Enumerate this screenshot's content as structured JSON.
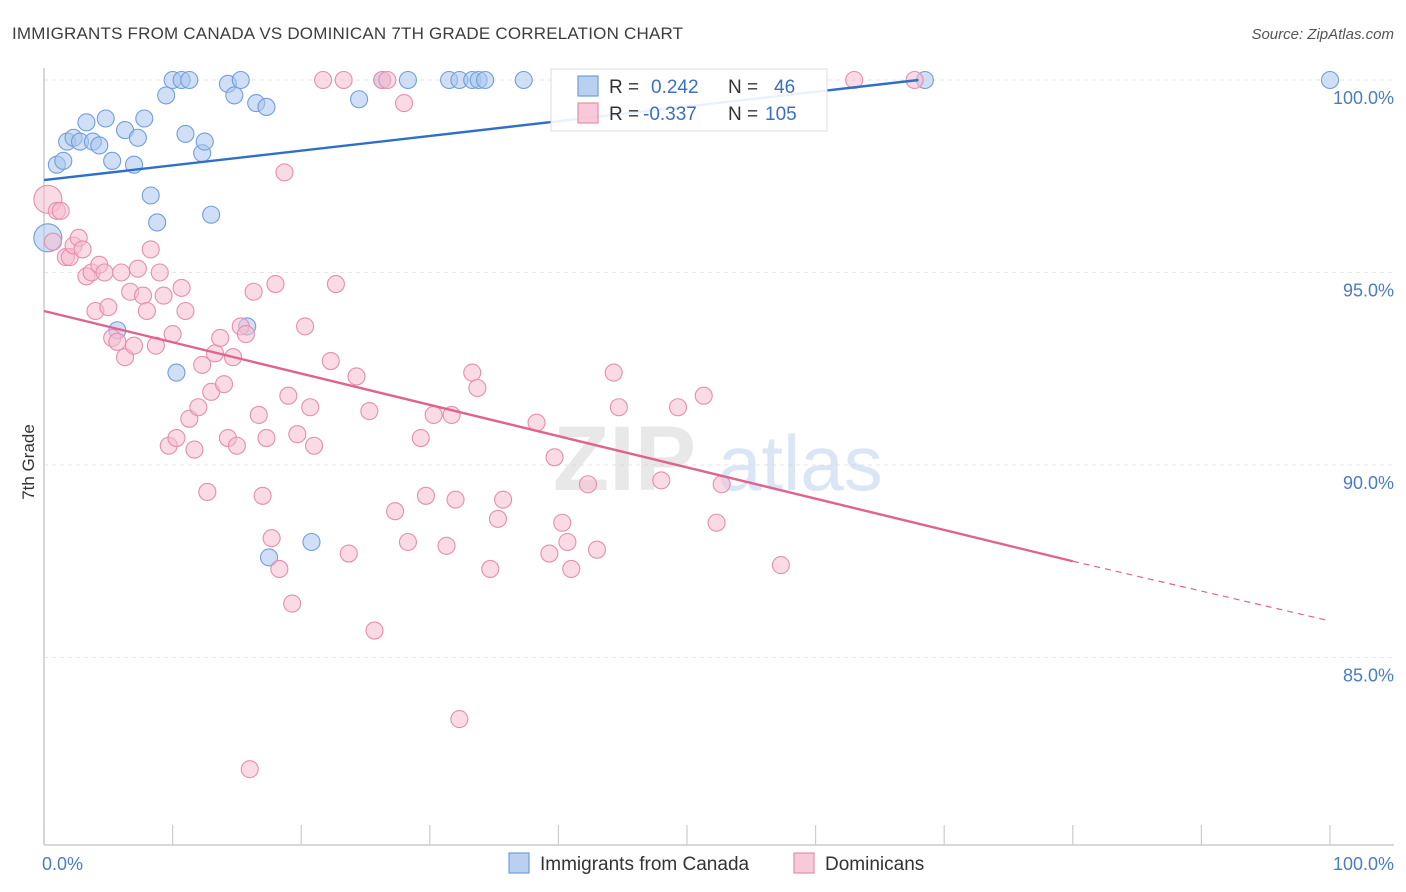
{
  "title": "IMMIGRANTS FROM CANADA VS DOMINICAN 7TH GRADE CORRELATION CHART",
  "source": "Source: ZipAtlas.com",
  "watermark": {
    "zip": "ZIP",
    "atlas": "atlas"
  },
  "chart_data": {
    "type": "scatter",
    "xlabel": "",
    "ylabel": "7th Grade",
    "xlim": [
      0,
      100
    ],
    "ylim": [
      80.5,
      100.8
    ],
    "x_tick_labels": [
      {
        "value": 0,
        "label": "0.0%"
      },
      {
        "value": 100,
        "label": "100.0%"
      }
    ],
    "y_ticks": [
      {
        "value": 100,
        "label": "100.0%"
      },
      {
        "value": 95,
        "label": "95.0%"
      },
      {
        "value": 90,
        "label": "90.0%"
      },
      {
        "value": 85,
        "label": "85.0%"
      }
    ],
    "grid": true,
    "legend_position": "top-center",
    "series": [
      {
        "name": "Immigrants from Canada",
        "color": "#a9c4ee",
        "stroke": "#6f9fdc",
        "line_color": "#2f6fc9",
        "R": "0.242",
        "N": "46",
        "trend": {
          "x0": 0,
          "y0": 97.4,
          "x1": 68,
          "y1": 100.0,
          "dash_to": null
        },
        "points": [
          [
            0.3,
            95.9
          ],
          [
            1.0,
            97.8
          ],
          [
            1.5,
            97.9
          ],
          [
            1.8,
            98.4
          ],
          [
            2.3,
            98.5
          ],
          [
            2.8,
            98.4
          ],
          [
            3.3,
            98.9
          ],
          [
            3.8,
            98.4
          ],
          [
            4.3,
            98.3
          ],
          [
            4.8,
            99.0
          ],
          [
            5.3,
            97.9
          ],
          [
            6.3,
            98.7
          ],
          [
            7.0,
            97.8
          ],
          [
            7.3,
            98.5
          ],
          [
            7.8,
            99.0
          ],
          [
            8.3,
            97.0
          ],
          [
            8.8,
            96.3
          ],
          [
            9.5,
            99.6
          ],
          [
            10.0,
            100.0
          ],
          [
            10.7,
            100.0
          ],
          [
            11.0,
            98.6
          ],
          [
            11.3,
            100.0
          ],
          [
            12.3,
            98.1
          ],
          [
            12.5,
            98.4
          ],
          [
            13.0,
            96.5
          ],
          [
            14.3,
            99.9
          ],
          [
            14.8,
            99.6
          ],
          [
            15.3,
            100.0
          ],
          [
            16.5,
            99.4
          ],
          [
            17.3,
            99.3
          ],
          [
            15.8,
            93.6
          ],
          [
            10.3,
            92.4
          ],
          [
            5.7,
            93.5
          ],
          [
            17.5,
            87.6
          ],
          [
            20.8,
            88.0
          ],
          [
            24.5,
            99.5
          ],
          [
            26.3,
            100.0
          ],
          [
            28.3,
            100.0
          ],
          [
            31.5,
            100.0
          ],
          [
            32.3,
            100.0
          ],
          [
            33.3,
            100.0
          ],
          [
            33.8,
            100.0
          ],
          [
            34.3,
            100.0
          ],
          [
            37.3,
            100.0
          ],
          [
            68.5,
            100.0
          ],
          [
            100.0,
            100.0
          ]
        ]
      },
      {
        "name": "Dominicans",
        "color": "#f6bcd0",
        "stroke": "#e48fae",
        "line_color": "#e0628f",
        "R": "-0.337",
        "N": "105",
        "trend": {
          "x0": 0,
          "y0": 94.0,
          "x1": 80,
          "y1": 87.5,
          "dash_to": {
            "x": 100,
            "y": 85.95
          }
        },
        "points": [
          [
            0.3,
            96.9
          ],
          [
            0.7,
            95.8
          ],
          [
            1.0,
            96.6
          ],
          [
            1.3,
            96.6
          ],
          [
            1.7,
            95.4
          ],
          [
            2.0,
            95.4
          ],
          [
            2.3,
            95.7
          ],
          [
            2.7,
            95.9
          ],
          [
            3.0,
            95.6
          ],
          [
            3.3,
            94.9
          ],
          [
            3.7,
            95.0
          ],
          [
            4.0,
            94.0
          ],
          [
            4.3,
            95.2
          ],
          [
            4.7,
            95.0
          ],
          [
            5.0,
            94.1
          ],
          [
            5.3,
            93.3
          ],
          [
            5.7,
            93.2
          ],
          [
            6.0,
            95.0
          ],
          [
            6.3,
            92.8
          ],
          [
            6.7,
            94.5
          ],
          [
            7.0,
            93.1
          ],
          [
            7.3,
            95.1
          ],
          [
            7.7,
            94.4
          ],
          [
            8.0,
            94.0
          ],
          [
            8.3,
            95.6
          ],
          [
            8.7,
            93.1
          ],
          [
            9.0,
            95.0
          ],
          [
            9.3,
            94.4
          ],
          [
            9.7,
            90.5
          ],
          [
            10.0,
            93.4
          ],
          [
            10.3,
            90.7
          ],
          [
            10.7,
            94.6
          ],
          [
            11.0,
            94.0
          ],
          [
            11.3,
            91.2
          ],
          [
            11.7,
            90.4
          ],
          [
            12.0,
            91.5
          ],
          [
            12.3,
            92.6
          ],
          [
            12.7,
            89.3
          ],
          [
            13.0,
            91.9
          ],
          [
            13.3,
            92.9
          ],
          [
            13.7,
            93.3
          ],
          [
            14.0,
            92.1
          ],
          [
            14.3,
            90.7
          ],
          [
            14.7,
            92.8
          ],
          [
            15.0,
            90.5
          ],
          [
            15.3,
            93.6
          ],
          [
            15.7,
            93.4
          ],
          [
            16.0,
            82.1
          ],
          [
            16.3,
            94.5
          ],
          [
            16.7,
            91.3
          ],
          [
            17.0,
            89.2
          ],
          [
            17.3,
            90.7
          ],
          [
            17.7,
            88.1
          ],
          [
            18.0,
            94.7
          ],
          [
            18.3,
            87.3
          ],
          [
            18.7,
            97.6
          ],
          [
            19.0,
            91.8
          ],
          [
            19.3,
            86.4
          ],
          [
            19.7,
            90.8
          ],
          [
            20.3,
            93.6
          ],
          [
            20.7,
            91.5
          ],
          [
            21.0,
            90.5
          ],
          [
            21.7,
            100.0
          ],
          [
            22.3,
            92.7
          ],
          [
            22.7,
            94.7
          ],
          [
            23.3,
            100.0
          ],
          [
            23.7,
            87.7
          ],
          [
            24.3,
            92.3
          ],
          [
            25.3,
            91.4
          ],
          [
            25.7,
            85.7
          ],
          [
            26.3,
            100.0
          ],
          [
            26.7,
            100.0
          ],
          [
            27.3,
            88.8
          ],
          [
            28.0,
            99.4
          ],
          [
            28.3,
            88.0
          ],
          [
            29.3,
            90.7
          ],
          [
            29.7,
            89.2
          ],
          [
            30.3,
            91.3
          ],
          [
            31.3,
            87.9
          ],
          [
            31.7,
            91.3
          ],
          [
            32.0,
            89.1
          ],
          [
            32.3,
            83.4
          ],
          [
            33.3,
            92.4
          ],
          [
            33.7,
            92.0
          ],
          [
            34.7,
            87.3
          ],
          [
            35.3,
            88.6
          ],
          [
            35.7,
            89.1
          ],
          [
            38.3,
            91.1
          ],
          [
            39.3,
            87.7
          ],
          [
            39.7,
            90.2
          ],
          [
            40.3,
            88.5
          ],
          [
            40.7,
            88.0
          ],
          [
            41.0,
            87.3
          ],
          [
            42.3,
            89.5
          ],
          [
            43.0,
            87.8
          ],
          [
            44.3,
            92.4
          ],
          [
            44.7,
            91.5
          ],
          [
            48.0,
            89.6
          ],
          [
            49.3,
            91.5
          ],
          [
            51.3,
            91.8
          ],
          [
            52.3,
            88.5
          ],
          [
            52.7,
            89.5
          ],
          [
            57.3,
            87.4
          ],
          [
            63.0,
            100.0
          ],
          [
            67.7,
            100.0
          ]
        ]
      }
    ]
  },
  "legend": {
    "r_label": "R =",
    "n_label": "N ="
  }
}
